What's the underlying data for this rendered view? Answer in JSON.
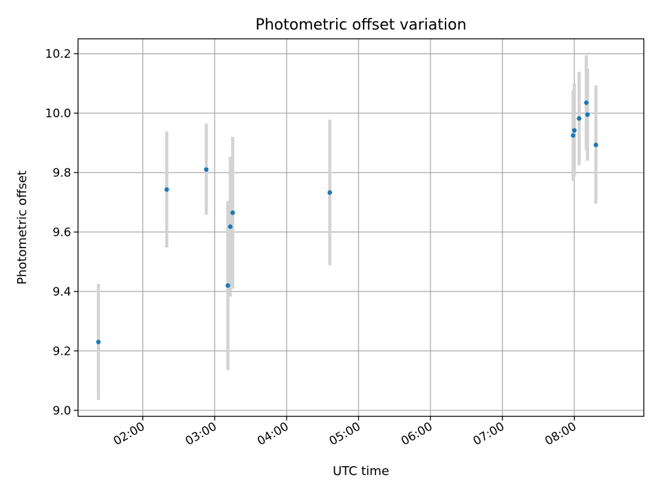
{
  "chart_data": {
    "type": "scatter",
    "title": "Photometric offset variation",
    "xlabel": "UTC time",
    "ylabel": "Photometric offset",
    "x_ticks": [
      "02:00",
      "03:00",
      "04:00",
      "05:00",
      "06:00",
      "07:00",
      "08:00"
    ],
    "y_ticks": [
      "9.0",
      "9.2",
      "9.4",
      "9.6",
      "9.8",
      "10.0",
      "10.2"
    ],
    "xlim": [
      "01:06",
      "08:58"
    ],
    "ylim": [
      8.98,
      10.25
    ],
    "grid": true,
    "points": [
      {
        "x": "01:23",
        "y": 9.23,
        "err": [
          9.035,
          9.425
        ]
      },
      {
        "x": "02:20",
        "y": 9.743,
        "err": [
          9.548,
          9.938
        ]
      },
      {
        "x": "02:53",
        "y": 9.81,
        "err": [
          9.658,
          9.965
        ]
      },
      {
        "x": "03:11",
        "y": 9.42,
        "err": [
          9.135,
          9.705
        ]
      },
      {
        "x": "03:13",
        "y": 9.618,
        "err": [
          9.383,
          9.853
        ]
      },
      {
        "x": "03:15",
        "y": 9.665,
        "err": [
          9.41,
          9.92
        ]
      },
      {
        "x": "04:36",
        "y": 9.733,
        "err": [
          9.488,
          9.978
        ]
      },
      {
        "x": "07:59",
        "y": 9.925,
        "err": [
          9.772,
          10.078
        ]
      },
      {
        "x": "08:00",
        "y": 9.942,
        "err": [
          9.785,
          10.1
        ]
      },
      {
        "x": "08:04",
        "y": 9.982,
        "err": [
          9.825,
          10.139
        ]
      },
      {
        "x": "08:10",
        "y": 10.035,
        "err": [
          9.875,
          10.195
        ]
      },
      {
        "x": "08:11",
        "y": 9.995,
        "err": [
          9.84,
          10.15
        ]
      },
      {
        "x": "08:18",
        "y": 9.893,
        "err": [
          9.695,
          10.093
        ]
      }
    ]
  }
}
